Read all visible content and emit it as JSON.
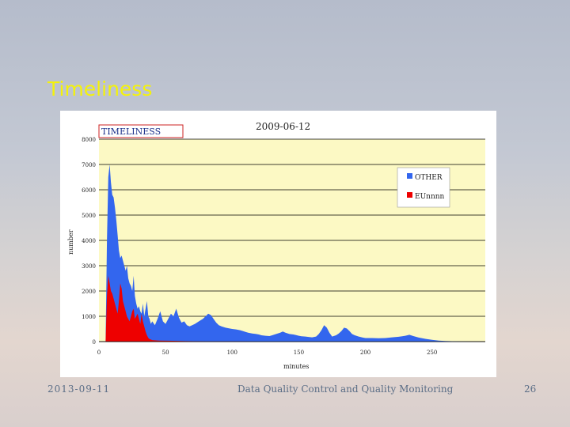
{
  "slide": {
    "title": "Timeliness",
    "footer_date": "2013-09-11",
    "footer_center": "Data Quality Control and Quality Monitoring",
    "page_number": "26"
  },
  "colors": {
    "title": "#f4f20a",
    "plot_background": "#fcf9c4",
    "series_other": "#3366ee",
    "series_eu": "#ee0000",
    "logo_border": "#cc2222",
    "logo_text": "#1a2f8a"
  },
  "chart_data": {
    "type": "area",
    "logo_text": "TIMELINESS",
    "title": "2009-06-12",
    "xlabel": "minutes",
    "ylabel": "number",
    "xlim": [
      0,
      290
    ],
    "ylim": [
      0,
      8000
    ],
    "x_ticks": [
      0,
      50,
      100,
      150,
      200,
      250
    ],
    "x_tick_labels": [
      "0",
      "50",
      "100",
      "150",
      "200",
      "250"
    ],
    "y_ticks": [
      0,
      1000,
      2000,
      3000,
      4000,
      5000,
      6000,
      7000,
      8000
    ],
    "y_tick_labels": [
      "0",
      "1000",
      "2000",
      "3000",
      "4000",
      "5000",
      "6000",
      "7000",
      "8000"
    ],
    "grid": true,
    "legend_position": "top-right",
    "series": [
      {
        "name": "OTHER",
        "color": "#3366ee",
        "points": [
          [
            0,
            0
          ],
          [
            5,
            0
          ],
          [
            6,
            4000
          ],
          [
            7,
            6500
          ],
          [
            8,
            7000
          ],
          [
            9,
            6300
          ],
          [
            10,
            5800
          ],
          [
            11,
            5700
          ],
          [
            12,
            5300
          ],
          [
            13,
            4800
          ],
          [
            14,
            4200
          ],
          [
            15,
            3600
          ],
          [
            16,
            3300
          ],
          [
            17,
            3400
          ],
          [
            18,
            3200
          ],
          [
            19,
            3000
          ],
          [
            20,
            2800
          ],
          [
            21,
            3000
          ],
          [
            22,
            2500
          ],
          [
            23,
            2300
          ],
          [
            24,
            2200
          ],
          [
            25,
            2000
          ],
          [
            26,
            2600
          ],
          [
            27,
            1800
          ],
          [
            28,
            1500
          ],
          [
            29,
            1300
          ],
          [
            30,
            1400
          ],
          [
            31,
            1200
          ],
          [
            32,
            1100
          ],
          [
            33,
            1500
          ],
          [
            34,
            1000
          ],
          [
            35,
            1300
          ],
          [
            36,
            1600
          ],
          [
            37,
            1000
          ],
          [
            38,
            900
          ],
          [
            39,
            700
          ],
          [
            40,
            800
          ],
          [
            42,
            650
          ],
          [
            44,
            900
          ],
          [
            46,
            1200
          ],
          [
            48,
            800
          ],
          [
            50,
            700
          ],
          [
            52,
            900
          ],
          [
            54,
            1100
          ],
          [
            56,
            1000
          ],
          [
            58,
            1300
          ],
          [
            60,
            950
          ],
          [
            62,
            750
          ],
          [
            64,
            800
          ],
          [
            66,
            650
          ],
          [
            68,
            600
          ],
          [
            70,
            650
          ],
          [
            72,
            700
          ],
          [
            75,
            800
          ],
          [
            78,
            900
          ],
          [
            80,
            1000
          ],
          [
            82,
            1100
          ],
          [
            84,
            1050
          ],
          [
            86,
            900
          ],
          [
            88,
            750
          ],
          [
            90,
            650
          ],
          [
            92,
            600
          ],
          [
            95,
            550
          ],
          [
            98,
            520
          ],
          [
            100,
            500
          ],
          [
            103,
            480
          ],
          [
            106,
            450
          ],
          [
            108,
            420
          ],
          [
            110,
            380
          ],
          [
            112,
            350
          ],
          [
            115,
            320
          ],
          [
            118,
            300
          ],
          [
            120,
            280
          ],
          [
            122,
            250
          ],
          [
            125,
            230
          ],
          [
            128,
            220
          ],
          [
            130,
            250
          ],
          [
            133,
            300
          ],
          [
            136,
            350
          ],
          [
            138,
            400
          ],
          [
            140,
            350
          ],
          [
            143,
            300
          ],
          [
            146,
            280
          ],
          [
            148,
            260
          ],
          [
            150,
            230
          ],
          [
            152,
            210
          ],
          [
            155,
            200
          ],
          [
            158,
            180
          ],
          [
            160,
            170
          ],
          [
            163,
            200
          ],
          [
            165,
            300
          ],
          [
            167,
            450
          ],
          [
            169,
            650
          ],
          [
            171,
            550
          ],
          [
            173,
            350
          ],
          [
            175,
            200
          ],
          [
            178,
            250
          ],
          [
            180,
            320
          ],
          [
            182,
            420
          ],
          [
            184,
            550
          ],
          [
            186,
            520
          ],
          [
            188,
            420
          ],
          [
            190,
            300
          ],
          [
            192,
            250
          ],
          [
            195,
            200
          ],
          [
            198,
            160
          ],
          [
            200,
            140
          ],
          [
            205,
            140
          ],
          [
            210,
            130
          ],
          [
            215,
            140
          ],
          [
            220,
            170
          ],
          [
            225,
            190
          ],
          [
            230,
            230
          ],
          [
            233,
            270
          ],
          [
            236,
            220
          ],
          [
            240,
            160
          ],
          [
            245,
            110
          ],
          [
            250,
            70
          ],
          [
            255,
            40
          ],
          [
            260,
            25
          ],
          [
            265,
            15
          ],
          [
            270,
            5
          ],
          [
            280,
            0
          ],
          [
            290,
            0
          ]
        ]
      },
      {
        "name": "EUnnnn",
        "color": "#ee0000",
        "points": [
          [
            0,
            0
          ],
          [
            5,
            0
          ],
          [
            6,
            1800
          ],
          [
            7,
            2600
          ],
          [
            8,
            2300
          ],
          [
            9,
            2000
          ],
          [
            10,
            1900
          ],
          [
            11,
            1700
          ],
          [
            12,
            1500
          ],
          [
            13,
            1300
          ],
          [
            14,
            1100
          ],
          [
            15,
            1600
          ],
          [
            16,
            2300
          ],
          [
            17,
            2100
          ],
          [
            18,
            1600
          ],
          [
            19,
            1400
          ],
          [
            20,
            1200
          ],
          [
            21,
            1000
          ],
          [
            22,
            900
          ],
          [
            23,
            800
          ],
          [
            24,
            1000
          ],
          [
            25,
            1200
          ],
          [
            26,
            1300
          ],
          [
            27,
            900
          ],
          [
            28,
            1000
          ],
          [
            29,
            1100
          ],
          [
            30,
            900
          ],
          [
            31,
            700
          ],
          [
            32,
            1100
          ],
          [
            33,
            800
          ],
          [
            34,
            600
          ],
          [
            35,
            400
          ],
          [
            36,
            250
          ],
          [
            37,
            150
          ],
          [
            38,
            100
          ],
          [
            40,
            60
          ],
          [
            45,
            40
          ],
          [
            55,
            30
          ],
          [
            65,
            20
          ],
          [
            80,
            10
          ],
          [
            100,
            5
          ],
          [
            120,
            0
          ],
          [
            290,
            0
          ]
        ]
      }
    ]
  }
}
